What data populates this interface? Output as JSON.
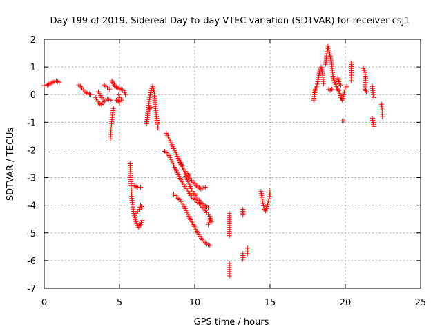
{
  "chart_data": {
    "type": "scatter",
    "title": "Day 199 of 2019, Sidereal Day-to-day VTEC variation (SDTVAR) for receiver csj1",
    "xlabel": "GPS time / hours",
    "ylabel": "SDTVAR / TECUs",
    "xlim": [
      0,
      25
    ],
    "ylim": [
      -7,
      2
    ],
    "xticks": [
      0,
      5,
      10,
      15,
      20,
      25
    ],
    "yticks": [
      -7,
      -6,
      -5,
      -4,
      -3,
      -2,
      -1,
      0,
      1,
      2
    ],
    "grid": true,
    "marker": "plus",
    "color": "#ff0000",
    "segments": [
      [
        [
          0.0,
          0.33
        ],
        [
          0.2,
          0.35
        ],
        [
          0.4,
          0.4
        ],
        [
          0.6,
          0.45
        ],
        [
          0.8,
          0.5
        ],
        [
          1.0,
          0.45
        ]
      ],
      [
        [
          2.3,
          0.35
        ],
        [
          2.5,
          0.25
        ],
        [
          2.7,
          0.1
        ],
        [
          2.9,
          0.05
        ],
        [
          3.1,
          0.0
        ]
      ],
      [
        [
          3.4,
          -0.1
        ],
        [
          3.6,
          -0.3
        ],
        [
          3.8,
          -0.35
        ],
        [
          4.0,
          -0.25
        ],
        [
          4.2,
          -0.15
        ],
        [
          4.4,
          -0.2
        ]
      ],
      [
        [
          3.6,
          0.1
        ],
        [
          3.8,
          -0.1
        ],
        [
          3.9,
          -0.15
        ]
      ],
      [
        [
          4.0,
          0.35
        ],
        [
          4.1,
          0.3
        ],
        [
          4.2,
          0.25
        ],
        [
          4.35,
          0.2
        ]
      ],
      [
        [
          4.5,
          0.5
        ],
        [
          4.6,
          0.4
        ],
        [
          4.7,
          0.3
        ],
        [
          4.9,
          0.25
        ],
        [
          5.1,
          0.2
        ],
        [
          5.3,
          0.15
        ],
        [
          5.4,
          0.0
        ]
      ],
      [
        [
          4.95,
          0.0
        ],
        [
          5.0,
          -0.1
        ],
        [
          5.1,
          -0.15
        ],
        [
          5.15,
          -0.2
        ]
      ],
      [
        [
          4.6,
          -0.5
        ],
        [
          4.5,
          -0.9
        ],
        [
          4.45,
          -1.2
        ],
        [
          4.4,
          -1.6
        ]
      ],
      [
        [
          5.0,
          -0.3
        ],
        [
          4.9,
          -0.2
        ],
        [
          4.8,
          -0.2
        ]
      ],
      [
        [
          5.7,
          -2.5
        ],
        [
          5.75,
          -3.0
        ],
        [
          5.8,
          -3.6
        ],
        [
          5.85,
          -3.9
        ],
        [
          5.95,
          -4.3
        ],
        [
          6.1,
          -4.6
        ],
        [
          6.25,
          -4.8
        ],
        [
          6.4,
          -4.7
        ],
        [
          6.5,
          -4.55
        ]
      ],
      [
        [
          6.0,
          -3.3
        ],
        [
          6.2,
          -3.35
        ],
        [
          6.4,
          -3.35
        ]
      ],
      [
        [
          6.1,
          -4.3
        ],
        [
          6.3,
          -4.15
        ],
        [
          6.4,
          -4.0
        ],
        [
          6.5,
          -4.1
        ]
      ],
      [
        [
          6.8,
          -1.05
        ],
        [
          6.9,
          -0.6
        ],
        [
          7.0,
          -0.1
        ],
        [
          7.1,
          0.15
        ],
        [
          7.2,
          0.3
        ],
        [
          7.3,
          0.1
        ],
        [
          7.4,
          -0.5
        ],
        [
          7.5,
          -1.0
        ],
        [
          7.55,
          -1.2
        ]
      ],
      [
        [
          7.0,
          -0.5
        ],
        [
          7.1,
          -0.45
        ]
      ],
      [
        [
          8.0,
          -2.05
        ],
        [
          8.3,
          -2.2
        ],
        [
          8.6,
          -2.55
        ],
        [
          8.9,
          -2.9
        ],
        [
          9.2,
          -3.2
        ],
        [
          9.5,
          -3.45
        ],
        [
          9.8,
          -3.7
        ],
        [
          10.1,
          -3.85
        ],
        [
          10.4,
          -4.0
        ],
        [
          10.7,
          -4.2
        ],
        [
          11.0,
          -4.4
        ],
        [
          11.1,
          -4.6
        ]
      ],
      [
        [
          8.1,
          -1.4
        ],
        [
          8.3,
          -1.6
        ],
        [
          8.6,
          -1.95
        ],
        [
          8.9,
          -2.3
        ],
        [
          9.2,
          -2.65
        ],
        [
          9.5,
          -2.85
        ],
        [
          9.8,
          -3.1
        ],
        [
          10.1,
          -3.3
        ],
        [
          10.4,
          -3.4
        ],
        [
          10.7,
          -3.35
        ]
      ],
      [
        [
          9.0,
          -2.4
        ],
        [
          9.2,
          -2.65
        ],
        [
          9.4,
          -2.95
        ],
        [
          9.6,
          -3.2
        ],
        [
          9.8,
          -3.45
        ],
        [
          10.1,
          -3.7
        ],
        [
          10.5,
          -3.95
        ],
        [
          10.9,
          -4.1
        ]
      ],
      [
        [
          8.6,
          -3.6
        ],
        [
          9.0,
          -3.8
        ],
        [
          9.3,
          -4.05
        ],
        [
          9.6,
          -4.4
        ],
        [
          9.9,
          -4.7
        ],
        [
          10.2,
          -5.0
        ],
        [
          10.5,
          -5.25
        ],
        [
          10.8,
          -5.4
        ],
        [
          11.0,
          -5.45
        ]
      ],
      [
        [
          10.9,
          -4.7
        ],
        [
          11.0,
          -4.5
        ]
      ],
      [
        [
          12.3,
          -4.3
        ],
        [
          12.3,
          -4.6
        ],
        [
          12.3,
          -4.8
        ],
        [
          12.3,
          -5.1
        ]
      ],
      [
        [
          12.3,
          -6.1
        ],
        [
          12.3,
          -6.4
        ],
        [
          12.3,
          -6.55
        ]
      ],
      [
        [
          13.2,
          -4.15
        ],
        [
          13.2,
          -4.35
        ]
      ],
      [
        [
          13.2,
          -5.75
        ],
        [
          13.2,
          -5.95
        ]
      ],
      [
        [
          13.5,
          -5.55
        ],
        [
          13.5,
          -5.75
        ]
      ],
      [
        [
          14.4,
          -3.5
        ],
        [
          14.5,
          -3.85
        ],
        [
          14.6,
          -4.1
        ],
        [
          14.7,
          -4.2
        ],
        [
          14.8,
          -4.05
        ],
        [
          14.9,
          -3.85
        ],
        [
          15.0,
          -3.6
        ],
        [
          14.95,
          -3.45
        ]
      ],
      [
        [
          17.9,
          -0.2
        ],
        [
          17.95,
          0.0
        ],
        [
          18.0,
          0.2
        ],
        [
          18.1,
          0.3
        ],
        [
          18.2,
          0.55
        ],
        [
          18.3,
          0.85
        ],
        [
          18.4,
          1.0
        ],
        [
          18.5,
          0.7
        ],
        [
          18.55,
          0.4
        ]
      ],
      [
        [
          18.7,
          1.1
        ],
        [
          18.75,
          1.4
        ],
        [
          18.8,
          1.55
        ],
        [
          18.85,
          1.75
        ],
        [
          18.9,
          1.6
        ],
        [
          19.0,
          1.4
        ],
        [
          19.1,
          1.1
        ],
        [
          19.15,
          0.8
        ],
        [
          19.2,
          0.6
        ],
        [
          19.3,
          0.45
        ],
        [
          19.4,
          0.3
        ],
        [
          19.5,
          0.2
        ],
        [
          19.6,
          0.1
        ],
        [
          19.7,
          -0.1
        ],
        [
          19.8,
          -0.2
        ],
        [
          19.9,
          0.0
        ],
        [
          20.0,
          0.25
        ],
        [
          20.1,
          0.3
        ]
      ],
      [
        [
          18.9,
          0.2
        ],
        [
          19.0,
          0.15
        ],
        [
          19.1,
          0.2
        ]
      ],
      [
        [
          19.5,
          0.6
        ],
        [
          19.6,
          0.4
        ],
        [
          19.7,
          0.35
        ]
      ],
      [
        [
          19.8,
          -0.95
        ],
        [
          19.9,
          -0.95
        ]
      ],
      [
        [
          20.4,
          1.15
        ],
        [
          20.4,
          0.95
        ],
        [
          20.4,
          0.7
        ],
        [
          20.4,
          0.5
        ]
      ],
      [
        [
          21.2,
          0.95
        ],
        [
          21.3,
          0.8
        ],
        [
          21.35,
          0.6
        ],
        [
          21.3,
          0.2
        ],
        [
          21.4,
          0.1
        ]
      ],
      [
        [
          21.8,
          0.3
        ],
        [
          21.85,
          0.0
        ],
        [
          21.9,
          -0.1
        ]
      ],
      [
        [
          21.8,
          -0.85
        ],
        [
          21.85,
          -1.0
        ],
        [
          21.9,
          -1.15
        ]
      ],
      [
        [
          22.4,
          -0.35
        ],
        [
          22.45,
          -0.55
        ],
        [
          22.45,
          -0.8
        ]
      ]
    ]
  }
}
